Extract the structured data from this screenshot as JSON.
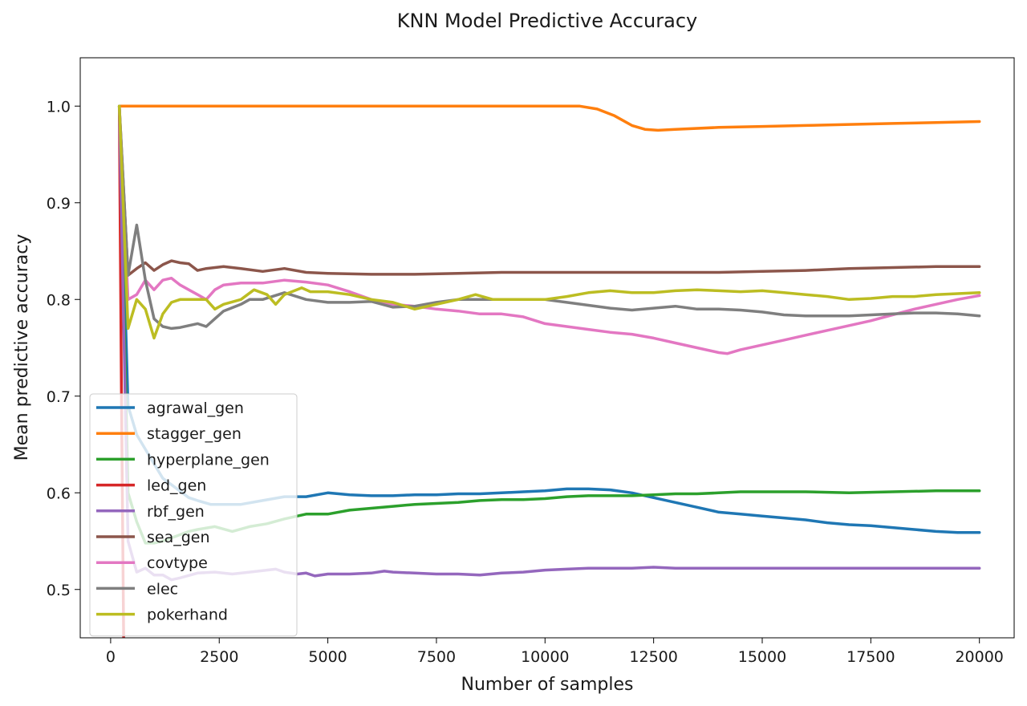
{
  "chart_data": {
    "type": "line",
    "title": "KNN Model Predictive Accuracy",
    "xlabel": "Number of samples",
    "ylabel": "Mean predictive accuracy",
    "xlim": [
      -700,
      20800
    ],
    "ylim": [
      0.45,
      1.05
    ],
    "xticks": [
      0,
      2500,
      5000,
      7500,
      10000,
      12500,
      15000,
      17500,
      20000
    ],
    "xtick_labels": [
      "0",
      "2500",
      "5000",
      "7500",
      "10000",
      "12500",
      "15000",
      "17500",
      "20000"
    ],
    "yticks": [
      0.5,
      0.6,
      0.7,
      0.8,
      0.9,
      1.0
    ],
    "ytick_labels": [
      "0.5",
      "0.6",
      "0.7",
      "0.8",
      "0.9",
      "1.0"
    ],
    "grid": false,
    "legend_position": "lower-left",
    "series": [
      {
        "name": "agrawal_gen",
        "color": "#1f77b4",
        "x": [
          200,
          400,
          600,
          800,
          1000,
          1200,
          1500,
          1800,
          2000,
          2300,
          2600,
          3000,
          3500,
          4000,
          4500,
          5000,
          5500,
          6000,
          6500,
          7000,
          7500,
          8000,
          8500,
          9000,
          9500,
          10000,
          10500,
          11000,
          11500,
          12000,
          12500,
          13000,
          13500,
          14000,
          14500,
          15000,
          15500,
          16000,
          16500,
          17000,
          17500,
          18000,
          18500,
          19000,
          19500,
          20000
        ],
        "y": [
          1.0,
          0.69,
          0.66,
          0.645,
          0.63,
          0.615,
          0.605,
          0.595,
          0.592,
          0.588,
          0.588,
          0.588,
          0.592,
          0.596,
          0.596,
          0.6,
          0.598,
          0.597,
          0.597,
          0.598,
          0.598,
          0.599,
          0.599,
          0.6,
          0.601,
          0.602,
          0.604,
          0.604,
          0.603,
          0.6,
          0.595,
          0.59,
          0.585,
          0.58,
          0.578,
          0.576,
          0.574,
          0.572,
          0.569,
          0.567,
          0.566,
          0.564,
          0.562,
          0.56,
          0.559,
          0.559
        ]
      },
      {
        "name": "stagger_gen",
        "color": "#ff7f0e",
        "x": [
          200,
          400,
          1000,
          3000,
          5000,
          7000,
          9000,
          10000,
          10800,
          11200,
          11600,
          12000,
          12300,
          12600,
          13000,
          14000,
          15000,
          16000,
          17000,
          18000,
          19000,
          20000
        ],
        "y": [
          1.0,
          1.0,
          1.0,
          1.0,
          1.0,
          1.0,
          1.0,
          1.0,
          1.0,
          0.997,
          0.99,
          0.98,
          0.976,
          0.975,
          0.976,
          0.978,
          0.979,
          0.98,
          0.981,
          0.982,
          0.983,
          0.984
        ]
      },
      {
        "name": "hyperplane_gen",
        "color": "#2ca02c",
        "x": [
          200,
          400,
          600,
          800,
          1000,
          1200,
          1500,
          1800,
          2000,
          2400,
          2800,
          3200,
          3600,
          4000,
          4500,
          5000,
          5500,
          6000,
          6500,
          7000,
          7500,
          8000,
          8500,
          9000,
          9500,
          10000,
          10500,
          11000,
          11500,
          12000,
          12500,
          13000,
          13500,
          14000,
          14500,
          15000,
          16000,
          17000,
          18000,
          19000,
          20000
        ],
        "y": [
          1.0,
          0.6,
          0.57,
          0.548,
          0.548,
          0.55,
          0.555,
          0.56,
          0.562,
          0.565,
          0.56,
          0.565,
          0.568,
          0.573,
          0.578,
          0.578,
          0.582,
          0.584,
          0.586,
          0.588,
          0.589,
          0.59,
          0.592,
          0.593,
          0.593,
          0.594,
          0.596,
          0.597,
          0.597,
          0.597,
          0.598,
          0.599,
          0.599,
          0.6,
          0.601,
          0.601,
          0.601,
          0.6,
          0.601,
          0.602,
          0.602
        ]
      },
      {
        "name": "led_gen",
        "color": "#d62728",
        "x": [
          200,
          250,
          300
        ],
        "y": [
          1.0,
          0.7,
          0.45
        ]
      },
      {
        "name": "rbf_gen",
        "color": "#9467bd",
        "x": [
          200,
          400,
          600,
          800,
          1000,
          1200,
          1400,
          1600,
          2000,
          2400,
          2800,
          3200,
          3600,
          3800,
          4000,
          4300,
          4500,
          4700,
          5000,
          5500,
          6000,
          6300,
          6500,
          7000,
          7500,
          8000,
          8500,
          9000,
          9500,
          10000,
          10500,
          11000,
          11500,
          12000,
          12500,
          13000,
          14000,
          15000,
          16000,
          17000,
          18000,
          19000,
          20000
        ],
        "y": [
          1.0,
          0.55,
          0.518,
          0.522,
          0.515,
          0.515,
          0.51,
          0.512,
          0.517,
          0.518,
          0.516,
          0.518,
          0.52,
          0.521,
          0.518,
          0.516,
          0.517,
          0.514,
          0.516,
          0.516,
          0.517,
          0.519,
          0.518,
          0.517,
          0.516,
          0.516,
          0.515,
          0.517,
          0.518,
          0.52,
          0.521,
          0.522,
          0.522,
          0.522,
          0.523,
          0.522,
          0.522,
          0.522,
          0.522,
          0.522,
          0.522,
          0.522,
          0.522
        ]
      },
      {
        "name": "sea_gen",
        "color": "#8c564b",
        "x": [
          200,
          400,
          600,
          800,
          1000,
          1200,
          1400,
          1600,
          1800,
          2000,
          2200,
          2400,
          2600,
          3000,
          3500,
          4000,
          4500,
          5000,
          6000,
          7000,
          8000,
          9000,
          10000,
          11000,
          12000,
          13000,
          14000,
          15000,
          16000,
          17000,
          18000,
          19000,
          20000
        ],
        "y": [
          1.0,
          0.825,
          0.832,
          0.838,
          0.83,
          0.836,
          0.84,
          0.838,
          0.837,
          0.83,
          0.832,
          0.833,
          0.834,
          0.832,
          0.829,
          0.832,
          0.828,
          0.827,
          0.826,
          0.826,
          0.827,
          0.828,
          0.828,
          0.828,
          0.828,
          0.828,
          0.828,
          0.829,
          0.83,
          0.832,
          0.833,
          0.834,
          0.834
        ]
      },
      {
        "name": "covtype",
        "color": "#e377c2",
        "x": [
          200,
          400,
          600,
          800,
          1000,
          1200,
          1400,
          1600,
          1800,
          2000,
          2200,
          2400,
          2600,
          3000,
          3500,
          4000,
          4500,
          5000,
          5500,
          6000,
          6500,
          7000,
          7500,
          8000,
          8500,
          9000,
          9500,
          10000,
          10500,
          11000,
          11500,
          12000,
          12500,
          13000,
          13500,
          14000,
          14200,
          14500,
          15000,
          15500,
          16000,
          16500,
          17000,
          17500,
          18000,
          18500,
          19000,
          19500,
          20000
        ],
        "y": [
          1.0,
          0.8,
          0.805,
          0.82,
          0.81,
          0.82,
          0.822,
          0.815,
          0.81,
          0.805,
          0.8,
          0.81,
          0.815,
          0.817,
          0.817,
          0.82,
          0.818,
          0.815,
          0.808,
          0.8,
          0.795,
          0.793,
          0.79,
          0.788,
          0.785,
          0.785,
          0.782,
          0.775,
          0.772,
          0.769,
          0.766,
          0.764,
          0.76,
          0.755,
          0.75,
          0.745,
          0.744,
          0.748,
          0.753,
          0.758,
          0.763,
          0.768,
          0.773,
          0.778,
          0.784,
          0.79,
          0.795,
          0.8,
          0.804
        ]
      },
      {
        "name": "elec",
        "color": "#7f7f7f",
        "x": [
          200,
          400,
          600,
          800,
          1000,
          1200,
          1400,
          1600,
          1800,
          2000,
          2200,
          2400,
          2600,
          3000,
          3200,
          3500,
          4000,
          4500,
          5000,
          5500,
          6000,
          6500,
          7000,
          7500,
          8000,
          8500,
          9000,
          9500,
          10000,
          10500,
          11000,
          11500,
          12000,
          12500,
          13000,
          13500,
          14000,
          14500,
          15000,
          15500,
          16000,
          17000,
          18000,
          18500,
          19000,
          19500,
          20000
        ],
        "y": [
          1.0,
          0.825,
          0.877,
          0.82,
          0.78,
          0.772,
          0.77,
          0.771,
          0.773,
          0.775,
          0.772,
          0.78,
          0.788,
          0.795,
          0.8,
          0.8,
          0.807,
          0.8,
          0.797,
          0.797,
          0.798,
          0.792,
          0.793,
          0.797,
          0.8,
          0.8,
          0.8,
          0.8,
          0.8,
          0.797,
          0.794,
          0.791,
          0.789,
          0.791,
          0.793,
          0.79,
          0.79,
          0.789,
          0.787,
          0.784,
          0.783,
          0.783,
          0.785,
          0.786,
          0.786,
          0.785,
          0.783
        ]
      },
      {
        "name": "pokerhand",
        "color": "#bcbd22",
        "x": [
          200,
          400,
          600,
          800,
          1000,
          1200,
          1400,
          1600,
          1800,
          2000,
          2200,
          2400,
          2600,
          3000,
          3300,
          3600,
          3800,
          4000,
          4400,
          4600,
          5000,
          5500,
          6000,
          6500,
          7000,
          7500,
          8000,
          8400,
          8800,
          9500,
          10000,
          10500,
          11000,
          11500,
          12000,
          12500,
          13000,
          13500,
          14000,
          14500,
          15000,
          15500,
          16000,
          16500,
          17000,
          17500,
          18000,
          18500,
          19000,
          19500,
          20000
        ],
        "y": [
          1.0,
          0.77,
          0.8,
          0.79,
          0.76,
          0.785,
          0.797,
          0.8,
          0.8,
          0.8,
          0.8,
          0.79,
          0.795,
          0.8,
          0.81,
          0.805,
          0.795,
          0.805,
          0.812,
          0.808,
          0.808,
          0.805,
          0.8,
          0.797,
          0.79,
          0.795,
          0.8,
          0.805,
          0.8,
          0.8,
          0.8,
          0.803,
          0.807,
          0.809,
          0.807,
          0.807,
          0.809,
          0.81,
          0.809,
          0.808,
          0.809,
          0.807,
          0.805,
          0.803,
          0.8,
          0.801,
          0.803,
          0.803,
          0.805,
          0.806,
          0.807
        ]
      }
    ]
  }
}
